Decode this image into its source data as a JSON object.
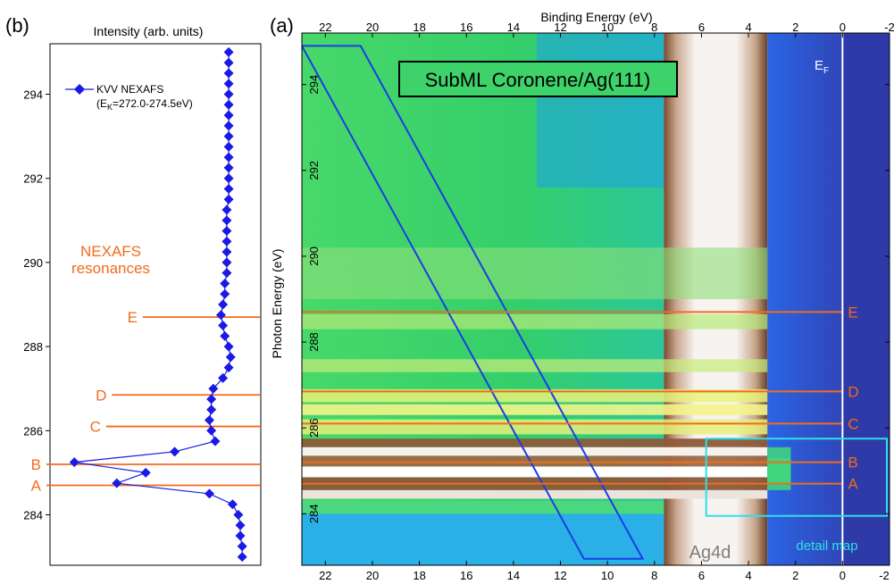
{
  "chart_data": [
    {
      "panel": "(b)",
      "type": "line",
      "title": "",
      "xlabel": "Intensity (arb. units)",
      "ylabel": "",
      "ylim": [
        282.8,
        295.2
      ],
      "y_ticks": [
        284,
        286,
        288,
        290,
        292,
        294
      ],
      "grid": false,
      "legend_position": "top-left",
      "series": [
        {
          "name": "KVV NEXAFS",
          "legend_subtitle": "(E",
          "legend_subscript": "K",
          "legend_suffix": "=272.0-274.5eV)",
          "color": "#1a1ae6",
          "marker": "diamond",
          "points": [
            {
              "y": 283.0,
              "x": 0.95
            },
            {
              "y": 283.25,
              "x": 0.95
            },
            {
              "y": 283.5,
              "x": 0.94
            },
            {
              "y": 283.75,
              "x": 0.94
            },
            {
              "y": 284.0,
              "x": 0.93
            },
            {
              "y": 284.25,
              "x": 0.9
            },
            {
              "y": 284.5,
              "x": 0.78
            },
            {
              "y": 284.75,
              "x": 0.3
            },
            {
              "y": 285.0,
              "x": 0.45
            },
            {
              "y": 285.25,
              "x": 0.08
            },
            {
              "y": 285.5,
              "x": 0.6
            },
            {
              "y": 285.75,
              "x": 0.81
            },
            {
              "y": 286.0,
              "x": 0.79
            },
            {
              "y": 286.25,
              "x": 0.78
            },
            {
              "y": 286.5,
              "x": 0.79
            },
            {
              "y": 286.75,
              "x": 0.79
            },
            {
              "y": 287.0,
              "x": 0.8
            },
            {
              "y": 287.25,
              "x": 0.85
            },
            {
              "y": 287.5,
              "x": 0.88
            },
            {
              "y": 287.75,
              "x": 0.89
            },
            {
              "y": 288.0,
              "x": 0.88
            },
            {
              "y": 288.25,
              "x": 0.86
            },
            {
              "y": 288.5,
              "x": 0.85
            },
            {
              "y": 288.75,
              "x": 0.84
            },
            {
              "y": 289.0,
              "x": 0.85
            },
            {
              "y": 289.25,
              "x": 0.86
            },
            {
              "y": 289.5,
              "x": 0.86
            },
            {
              "y": 289.75,
              "x": 0.87
            },
            {
              "y": 290.0,
              "x": 0.87
            },
            {
              "y": 290.25,
              "x": 0.87
            },
            {
              "y": 290.5,
              "x": 0.87
            },
            {
              "y": 290.75,
              "x": 0.87
            },
            {
              "y": 291.0,
              "x": 0.87
            },
            {
              "y": 291.25,
              "x": 0.87
            },
            {
              "y": 291.5,
              "x": 0.88
            },
            {
              "y": 291.75,
              "x": 0.88
            },
            {
              "y": 292.0,
              "x": 0.88
            },
            {
              "y": 292.25,
              "x": 0.88
            },
            {
              "y": 292.5,
              "x": 0.88
            },
            {
              "y": 292.75,
              "x": 0.88
            },
            {
              "y": 293.0,
              "x": 0.88
            },
            {
              "y": 293.25,
              "x": 0.88
            },
            {
              "y": 293.5,
              "x": 0.88
            },
            {
              "y": 293.75,
              "x": 0.88
            },
            {
              "y": 294.0,
              "x": 0.88
            },
            {
              "y": 294.25,
              "x": 0.88
            },
            {
              "y": 294.5,
              "x": 0.88
            },
            {
              "y": 294.75,
              "x": 0.88
            },
            {
              "y": 295.0,
              "x": 0.88
            }
          ]
        }
      ],
      "annotation_title": [
        "NEXAFS",
        "resonances"
      ],
      "resonances": [
        {
          "label": "E",
          "energy": 288.7,
          "x_start": 0.62
        },
        {
          "label": "D",
          "energy": 286.85,
          "x_start": 0.46
        },
        {
          "label": "C",
          "energy": 286.1,
          "x_start": 0.43
        },
        {
          "label": "B",
          "energy": 285.2,
          "x_start": 0.0
        },
        {
          "label": "A",
          "energy": 284.7,
          "x_start": 0.0
        }
      ],
      "resonance_color": "#f26b1d"
    },
    {
      "panel": "(a)",
      "type": "heatmap",
      "title": "SubML Coronene/Ag(111)",
      "xlabel": "Binding Energy (eV)",
      "ylabel": "Photon Energy (eV)",
      "xlim": [
        23.0,
        -2.0
      ],
      "ylim": [
        282.8,
        295.2
      ],
      "x_ticks": [
        22,
        20,
        18,
        16,
        14,
        12,
        10,
        8,
        6,
        4,
        2,
        0,
        -2
      ],
      "y_ticks": [
        284,
        286,
        288,
        290,
        292,
        294
      ],
      "grid": false,
      "fermi_label": "E",
      "fermi_subscript": "F",
      "fermi_energy": 0,
      "ag4d_label": "Ag4d",
      "detail_map_label": "detail map",
      "detail_map": {
        "be_range": [
          5.8,
          -2.0
        ],
        "hv_range": [
          283.95,
          285.75
        ],
        "color": "#2de0e8"
      },
      "auger_band": {
        "polygon_be_hv": [
          [
            23.0,
            294.9
          ],
          [
            20.5,
            294.9
          ],
          [
            8.5,
            282.95
          ],
          [
            11.0,
            282.95
          ]
        ],
        "color": "#1a3ee6"
      },
      "resonance_lines": {
        "be_start": 23.0,
        "be_end": 0.0,
        "color": "#f26b1d",
        "items": [
          {
            "label": "E",
            "energy": 288.7
          },
          {
            "label": "D",
            "energy": 286.85
          },
          {
            "label": "C",
            "energy": 286.1
          },
          {
            "label": "B",
            "energy": 285.2
          },
          {
            "label": "A",
            "energy": 284.7
          }
        ]
      },
      "color_regions": {
        "background_high_be": "#3dd26a",
        "ag4d_band": "#f5f0ec",
        "ag4d_edge": "#8a5a3c",
        "sp_band": "#2c5de0",
        "fermi_side": "#2d3aa8"
      }
    }
  ]
}
